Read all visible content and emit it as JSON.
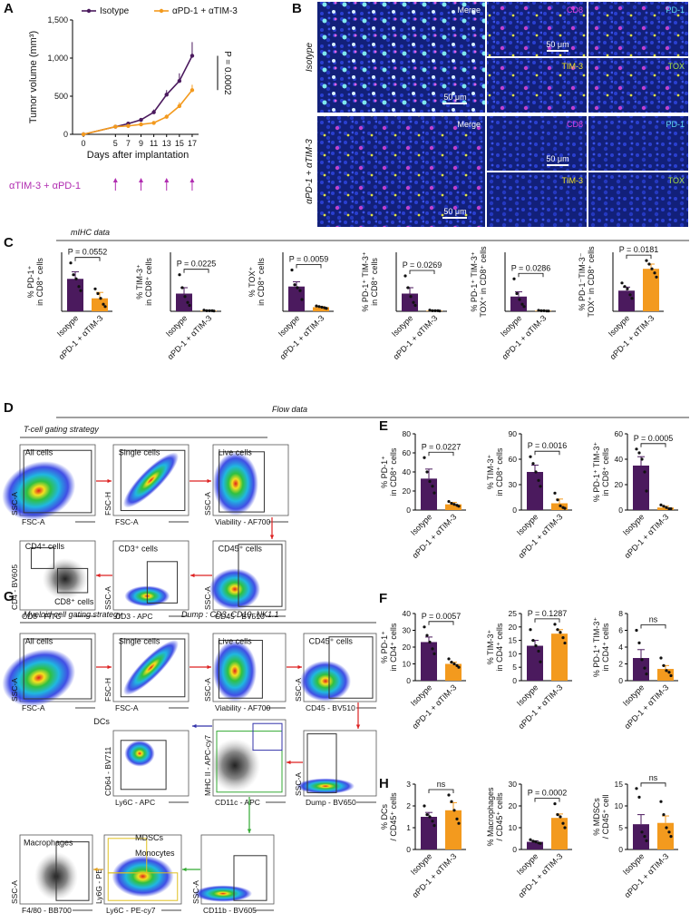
{
  "figure": {
    "panel_letters": [
      "A",
      "B",
      "C",
      "D",
      "E",
      "F",
      "G",
      "H"
    ],
    "section_labels": {
      "mihc": "mIHC data",
      "flow": "Flow data",
      "tcell": "T-cell gating strategy",
      "myeloid": "Myeloid cell gating strategy",
      "dump": "Dump : CD3, CD19, NK1.1"
    }
  },
  "chart_data": [
    {
      "type": "line",
      "ylabel": "Tumor volume (mm³)",
      "xlabel": "Days after implantation",
      "x": [
        0,
        5,
        7,
        9,
        11,
        13,
        15,
        17
      ],
      "xlim": [
        -1,
        18
      ],
      "xticks": [
        0,
        5,
        7,
        9,
        11,
        13,
        15,
        17
      ],
      "ylim": [
        0,
        1500
      ],
      "yticks": [
        0,
        500,
        {
          "value": 1000,
          "label": "1,000"
        },
        {
          "value": 1500,
          "label": "1,500"
        }
      ],
      "series": [
        {
          "name": "Isotype",
          "color": "#4b1a5e",
          "values": [
            0,
            100,
            140,
            190,
            290,
            520,
            700,
            1030
          ],
          "errors": [
            0,
            10,
            20,
            20,
            35,
            60,
            100,
            180
          ]
        },
        {
          "name": "αPD-1 + αTIM-3",
          "color": "#f39a1e",
          "values": [
            0,
            100,
            110,
            130,
            150,
            230,
            370,
            580
          ],
          "errors": [
            0,
            10,
            10,
            15,
            20,
            30,
            50,
            70
          ]
        }
      ],
      "annotation": "P = 0.0002",
      "treatment": {
        "label": "αTIM-3 + αPD-1",
        "days": [
          5,
          9,
          13,
          17
        ],
        "color": "#b02bb0"
      }
    },
    {
      "type": "bar",
      "ylabel": [
        "% PD-1⁺",
        "in CD8⁺ cells"
      ],
      "categories": [
        "Isotype",
        "αPD-1 + αTIM-3"
      ],
      "ylim": [
        0,
        100
      ],
      "values": [
        55,
        22
      ],
      "errors": [
        12,
        10
      ],
      "points": [
        [
          82,
          62,
          55,
          42,
          35
        ],
        [
          38,
          30,
          22,
          12,
          8
        ]
      ],
      "colors": [
        "#4b1a5e",
        "#f39a1e"
      ],
      "annotation": "P = 0.0552"
    },
    {
      "type": "bar",
      "ylabel": [
        "% TIM-3⁺",
        "in CD8⁺ cells"
      ],
      "categories": [
        "Isotype",
        "αPD-1 + αTIM-3"
      ],
      "ylim": [
        0,
        100
      ],
      "values": [
        30,
        1
      ],
      "errors": [
        10,
        0.5
      ],
      "points": [
        [
          62,
          40,
          25,
          15,
          10
        ],
        [
          2,
          1,
          1,
          1,
          0.5
        ]
      ],
      "colors": [
        "#4b1a5e",
        "#f39a1e"
      ],
      "annotation": "P = 0.0225"
    },
    {
      "type": "bar",
      "ylabel": [
        "% TOX⁺",
        "in CD8⁺ cells"
      ],
      "categories": [
        "Isotype",
        "αPD-1 + αTIM-3"
      ],
      "ylim": [
        0,
        100
      ],
      "values": [
        42,
        7
      ],
      "errors": [
        8,
        1
      ],
      "points": [
        [
          70,
          45,
          40,
          35,
          20
        ],
        [
          9,
          8,
          7,
          6,
          5
        ]
      ],
      "colors": [
        "#4b1a5e",
        "#f39a1e"
      ],
      "annotation": "P = 0.0059"
    },
    {
      "type": "bar",
      "ylabel": [
        "% PD-1⁺ TIM-3⁺",
        "in CD8⁺ cells"
      ],
      "categories": [
        "Isotype",
        "αPD-1 + αTIM-3"
      ],
      "ylim": [
        0,
        100
      ],
      "values": [
        30,
        1
      ],
      "errors": [
        10,
        0.5
      ],
      "points": [
        [
          60,
          40,
          25,
          15,
          10
        ],
        [
          2,
          1,
          1,
          1,
          0.5
        ]
      ],
      "colors": [
        "#4b1a5e",
        "#f39a1e"
      ],
      "annotation": "P = 0.0269"
    },
    {
      "type": "bar",
      "ylabel": [
        "% PD-1⁺ TIM-3⁺",
        "TOX⁺ in CD8⁺ cells"
      ],
      "categories": [
        "Isotype",
        "αPD-1 + αTIM-3"
      ],
      "ylim": [
        0,
        100
      ],
      "values": [
        25,
        1
      ],
      "errors": [
        8,
        0.5
      ],
      "points": [
        [
          55,
          30,
          20,
          12,
          8
        ],
        [
          1.5,
          1,
          1,
          0.5,
          0.5
        ]
      ],
      "colors": [
        "#4b1a5e",
        "#f39a1e"
      ],
      "annotation": "P = 0.0286"
    },
    {
      "type": "bar",
      "ylabel": [
        "% PD-1⁻TIM-3⁻",
        "TOX⁺ in CD8⁺ cells"
      ],
      "categories": [
        "Isotype",
        "αPD-1 + αTIM-3"
      ],
      "ylim": [
        0,
        100
      ],
      "values": [
        35,
        72
      ],
      "errors": [
        6,
        8
      ],
      "points": [
        [
          48,
          42,
          38,
          28,
          22
        ],
        [
          86,
          80,
          72,
          65,
          58
        ]
      ],
      "colors": [
        "#4b1a5e",
        "#f39a1e"
      ],
      "annotation": "P = 0.0181"
    },
    {
      "type": "bar",
      "ylabel": [
        "% PD-1⁺",
        "in CD8⁺ cells"
      ],
      "categories": [
        "Isotype",
        "αPD-1 + αTIM-3"
      ],
      "ylim": [
        0,
        80
      ],
      "yticks": [
        0,
        20,
        40,
        60,
        80
      ],
      "values": [
        33,
        6
      ],
      "errors": [
        10,
        2
      ],
      "points": [
        [
          55,
          40,
          30,
          25,
          18
        ],
        [
          9,
          7,
          6,
          5,
          4
        ]
      ],
      "colors": [
        "#4b1a5e",
        "#f39a1e"
      ],
      "annotation": "P = 0.0227"
    },
    {
      "type": "bar",
      "ylabel": [
        "% TIM-3⁺",
        "in CD8⁺ cells"
      ],
      "categories": [
        "Isotype",
        "αPD-1 + αTIM-3"
      ],
      "ylim": [
        0,
        90
      ],
      "yticks": [
        0,
        30,
        60,
        90
      ],
      "values": [
        45,
        8
      ],
      "errors": [
        8,
        5
      ],
      "points": [
        [
          63,
          55,
          45,
          35,
          28
        ],
        [
          20,
          12,
          5,
          3,
          2
        ]
      ],
      "colors": [
        "#4b1a5e",
        "#f39a1e"
      ],
      "annotation": "P = 0.0016"
    },
    {
      "type": "bar",
      "ylabel": [
        "% PD-1⁺ TIM-3⁺",
        "in CD8⁺ cells"
      ],
      "categories": [
        "Isotype",
        "αPD-1 + αTIM-3"
      ],
      "ylim": [
        0,
        60
      ],
      "yticks": [
        0,
        20,
        40,
        60
      ],
      "values": [
        35,
        2
      ],
      "errors": [
        7,
        1
      ],
      "points": [
        [
          48,
          45,
          40,
          30,
          15
        ],
        [
          4,
          3,
          2,
          1,
          1
        ]
      ],
      "colors": [
        "#4b1a5e",
        "#f39a1e"
      ],
      "annotation": "P = 0.0005"
    },
    {
      "type": "bar",
      "ylabel": [
        "% PD-1⁺",
        "in CD4⁺ cells"
      ],
      "categories": [
        "Isotype",
        "αPD-1 + αTIM-3"
      ],
      "ylim": [
        0,
        40
      ],
      "yticks": [
        0,
        10,
        20,
        30,
        40
      ],
      "values": [
        23,
        10
      ],
      "errors": [
        3,
        1
      ],
      "points": [
        [
          32,
          27,
          23,
          19,
          16
        ],
        [
          13,
          11,
          10,
          9,
          8
        ]
      ],
      "colors": [
        "#4b1a5e",
        "#f39a1e"
      ],
      "annotation": "P = 0.0057"
    },
    {
      "type": "bar",
      "ylabel": [
        "% TIM-3⁺",
        "in CD4⁺ cells"
      ],
      "categories": [
        "Isotype",
        "αPD-1 + αTIM-3"
      ],
      "ylim": [
        0,
        25
      ],
      "yticks": [
        0,
        5,
        10,
        15,
        20,
        25
      ],
      "values": [
        13,
        17.5
      ],
      "errors": [
        2,
        1.5
      ],
      "points": [
        [
          19,
          15,
          13,
          11,
          7
        ],
        [
          21,
          19,
          18,
          16,
          14
        ]
      ],
      "colors": [
        "#4b1a5e",
        "#f39a1e"
      ],
      "annotation": "P = 0.1287"
    },
    {
      "type": "bar",
      "ylabel": [
        "% PD-1⁺ TIM-3⁺",
        "in CD4⁺ cells"
      ],
      "categories": [
        "Isotype",
        "αPD-1 + αTIM-3"
      ],
      "ylim": [
        0,
        8
      ],
      "yticks": [
        0,
        2,
        4,
        6,
        8
      ],
      "values": [
        2.7,
        1.4
      ],
      "errors": [
        1,
        0.4
      ],
      "points": [
        [
          6,
          4.5,
          2.5,
          1.5,
          0.8
        ],
        [
          2.7,
          1.8,
          1.2,
          1,
          0.6
        ]
      ],
      "colors": [
        "#4b1a5e",
        "#f39a1e"
      ],
      "annotation": "ns"
    },
    {
      "type": "bar",
      "ylabel": [
        "% DCs",
        "/ CD45⁺ cells"
      ],
      "categories": [
        "Isotype",
        "αPD-1 + αTIM-3"
      ],
      "ylim": [
        0,
        3
      ],
      "yticks": [
        0,
        1,
        2,
        3
      ],
      "values": [
        1.5,
        1.8
      ],
      "errors": [
        0.2,
        0.35
      ],
      "points": [
        [
          2,
          1.6,
          1.5,
          1.3,
          1.1
        ],
        [
          2.5,
          2.2,
          1.8,
          1.4,
          1.2
        ]
      ],
      "colors": [
        "#4b1a5e",
        "#f39a1e"
      ],
      "annotation": "ns"
    },
    {
      "type": "bar",
      "ylabel": [
        "% Macrophages",
        "/ CD45⁺ cells"
      ],
      "categories": [
        "Isotype",
        "αPD-1 + αTIM-3"
      ],
      "ylim": [
        0,
        30
      ],
      "yticks": [
        0,
        10,
        20,
        30
      ],
      "values": [
        3.5,
        14.5
      ],
      "errors": [
        0.5,
        1.8
      ],
      "points": [
        [
          4.5,
          3.8,
          3.5,
          3,
          2.8
        ],
        [
          21,
          16,
          15,
          12,
          10
        ]
      ],
      "colors": [
        "#4b1a5e",
        "#f39a1e"
      ],
      "annotation": "P = 0.0002"
    },
    {
      "type": "bar",
      "ylabel": [
        "% MDSCs",
        "/ CD45⁺ cell"
      ],
      "categories": [
        "Isotype",
        "αPD-1 + αTIM-3"
      ],
      "ylim": [
        0,
        15
      ],
      "yticks": [
        0,
        5,
        10,
        15
      ],
      "values": [
        5.8,
        6.1
      ],
      "errors": [
        2.2,
        1.6
      ],
      "points": [
        [
          14,
          12,
          4,
          3,
          2
        ],
        [
          11,
          8,
          5,
          4,
          3
        ]
      ],
      "colors": [
        "#4b1a5e",
        "#f39a1e"
      ],
      "annotation": "ns"
    }
  ],
  "panel_b": {
    "rows": [
      {
        "label": "Isotype",
        "tiles": [
          "Merge",
          "CD8",
          "PD-1",
          "TIM-3",
          "TOX"
        ],
        "scale_bars": [
          "50 μm",
          "50 μm"
        ]
      },
      {
        "label": "αPD-1 + αTIM-3",
        "tiles": [
          "Merge",
          "CD8",
          "PD-1",
          "TIM-3",
          "TOX"
        ],
        "scale_bars": [
          "50 μm",
          "50 μm"
        ]
      }
    ]
  },
  "panel_d": {
    "plots": [
      {
        "gates": [
          "All cells"
        ],
        "x_axis": "FSC-A",
        "y_axis": "SSC-A"
      },
      {
        "gates": [
          "Single cells"
        ],
        "x_axis": "FSC-A",
        "y_axis": "FSC-H"
      },
      {
        "gates": [
          "Live cells"
        ],
        "x_axis": "Viability - AF700",
        "y_axis": "SSC-A"
      },
      {
        "gates": [
          "CD45⁺ cells"
        ],
        "x_axis": "CD45 - BV510",
        "y_axis": "SSC-A"
      },
      {
        "gates": [
          "CD3⁺ cells"
        ],
        "x_axis": "CD3 - APC",
        "y_axis": "SSC-A"
      },
      {
        "gates": [
          "CD4⁺ cells",
          "CD8⁺ cells"
        ],
        "x_axis": "CD8 - FITC",
        "y_axis": "CD4 - BV605"
      }
    ]
  },
  "panel_g": {
    "plots": [
      {
        "gates": [
          "All cells"
        ],
        "x_axis": "FSC-A",
        "y_axis": "SSC-A"
      },
      {
        "gates": [
          "Single cells"
        ],
        "x_axis": "FSC-A",
        "y_axis": "FSC-H"
      },
      {
        "gates": [
          "Live cells"
        ],
        "x_axis": "Viability - AF700",
        "y_axis": "SSC-A"
      },
      {
        "gates": [
          "CD45⁺ cells"
        ],
        "x_axis": "CD45 - BV510",
        "y_axis": "SSC-A"
      },
      {
        "gates": [],
        "x_axis": "Dump - BV650",
        "y_axis": "SSC-A"
      },
      {
        "gates": [],
        "x_axis": "CD11c - APC",
        "y_axis": "MHC II - APC-cy7"
      },
      {
        "gates": [
          "DCs"
        ],
        "x_axis": "Ly6C - APC",
        "y_axis": "CD64 - BV711"
      },
      {
        "gates": [],
        "x_axis": "CD11b - BV605",
        "y_axis": "SSC-A"
      },
      {
        "gates": [
          "MDSCs",
          "Monocytes"
        ],
        "x_axis": "Ly6C - PE-cy7",
        "y_axis": "Ly6G - PE"
      },
      {
        "gates": [
          "Macrophages"
        ],
        "x_axis": "F4/80 - BB700",
        "y_axis": "SSC-A"
      }
    ]
  }
}
